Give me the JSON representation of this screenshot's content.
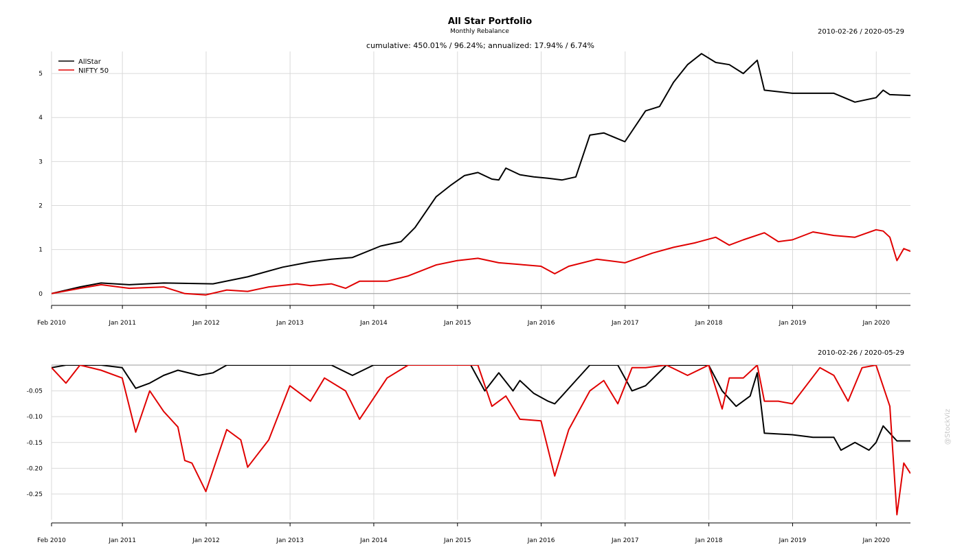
{
  "chart_data": [
    {
      "type": "line",
      "title": "All Star Portfolio",
      "subtitle": "Monthly Rebalance",
      "summary": "cumulative: 450.01% / 96.24%; annualized: 17.94% / 6.74%",
      "date_range_label": "2010-02-26 / 2020-05-29",
      "x_range": [
        "2010-02-26",
        "2020-05-29"
      ],
      "x_ticks": [
        "Feb 2010",
        "Jan 2011",
        "Jan 2012",
        "Jan 2013",
        "Jan 2014",
        "Jan 2015",
        "Jan 2016",
        "Jan 2017",
        "Jan 2018",
        "Jan 2019",
        "Jan 2020"
      ],
      "ylim": [
        -0.3,
        5.5
      ],
      "y_ticks": [
        "0",
        "1",
        "2",
        "3",
        "4",
        "5"
      ],
      "grid": true,
      "legend_position": "top-left",
      "series": [
        {
          "name": "AllStar",
          "color": "#000000",
          "dates": [
            "2010-02-26",
            "2010-06-30",
            "2010-09-30",
            "2011-01-31",
            "2011-06-30",
            "2012-01-31",
            "2012-06-30",
            "2012-11-30",
            "2013-03-31",
            "2013-06-30",
            "2013-09-30",
            "2014-01-31",
            "2014-04-30",
            "2014-06-30",
            "2014-09-30",
            "2014-11-30",
            "2015-01-31",
            "2015-03-31",
            "2015-05-31",
            "2015-06-30",
            "2015-07-31",
            "2015-09-30",
            "2015-11-30",
            "2016-01-31",
            "2016-03-31",
            "2016-05-31",
            "2016-07-31",
            "2016-09-30",
            "2016-12-31",
            "2017-03-31",
            "2017-05-31",
            "2017-07-31",
            "2017-09-30",
            "2017-11-30",
            "2018-01-31",
            "2018-03-31",
            "2018-05-31",
            "2018-07-31",
            "2018-08-31",
            "2018-12-31",
            "2019-06-30",
            "2019-09-30",
            "2019-12-31",
            "2020-01-31",
            "2020-02-29",
            "2020-05-29"
          ],
          "values": [
            0.0,
            0.15,
            0.24,
            0.2,
            0.24,
            0.22,
            0.38,
            0.6,
            0.72,
            0.78,
            0.82,
            1.08,
            1.18,
            1.5,
            2.2,
            2.45,
            2.68,
            2.75,
            2.6,
            2.58,
            2.85,
            2.7,
            2.65,
            2.62,
            2.58,
            2.65,
            3.6,
            3.65,
            3.45,
            4.15,
            4.25,
            4.8,
            5.2,
            5.45,
            5.25,
            5.2,
            5.0,
            5.3,
            4.62,
            4.55,
            4.55,
            4.35,
            4.45,
            4.62,
            4.52,
            4.5
          ]
        },
        {
          "name": "NIFTY 50",
          "color": "#e00000",
          "dates": [
            "2010-02-26",
            "2010-06-30",
            "2010-09-30",
            "2011-01-31",
            "2011-06-30",
            "2011-09-30",
            "2011-12-31",
            "2012-03-31",
            "2012-06-30",
            "2012-09-30",
            "2013-01-31",
            "2013-03-31",
            "2013-06-30",
            "2013-08-31",
            "2013-10-31",
            "2014-02-28",
            "2014-05-31",
            "2014-09-30",
            "2014-12-31",
            "2015-03-31",
            "2015-06-30",
            "2015-09-30",
            "2015-12-31",
            "2016-02-29",
            "2016-04-30",
            "2016-08-31",
            "2016-12-31",
            "2017-04-30",
            "2017-07-31",
            "2017-10-31",
            "2018-01-31",
            "2018-03-31",
            "2018-05-31",
            "2018-08-31",
            "2018-10-31",
            "2018-12-31",
            "2019-03-31",
            "2019-06-30",
            "2019-09-30",
            "2019-12-31",
            "2020-01-31",
            "2020-02-29",
            "2020-03-31",
            "2020-04-30",
            "2020-05-29"
          ],
          "values": [
            0.0,
            0.12,
            0.2,
            0.12,
            0.15,
            0.0,
            -0.03,
            0.08,
            0.05,
            0.15,
            0.22,
            0.18,
            0.22,
            0.12,
            0.28,
            0.28,
            0.4,
            0.65,
            0.75,
            0.8,
            0.7,
            0.66,
            0.62,
            0.45,
            0.62,
            0.78,
            0.7,
            0.92,
            1.05,
            1.15,
            1.28,
            1.1,
            1.22,
            1.38,
            1.18,
            1.22,
            1.4,
            1.32,
            1.28,
            1.45,
            1.42,
            1.28,
            0.75,
            1.02,
            0.96
          ]
        }
      ]
    },
    {
      "type": "line",
      "date_range_label": "2010-02-26 / 2020-05-29",
      "x_range": [
        "2010-02-26",
        "2020-05-29"
      ],
      "x_ticks": [
        "Feb 2010",
        "Jan 2011",
        "Jan 2012",
        "Jan 2013",
        "Jan 2014",
        "Jan 2015",
        "Jan 2016",
        "Jan 2017",
        "Jan 2018",
        "Jan 2019",
        "Jan 2020"
      ],
      "ylim": [
        -0.3,
        0.0
      ],
      "y_ticks": [
        "-0.05",
        "-0.10",
        "-0.15",
        "-0.20",
        "-0.25"
      ],
      "grid": true,
      "series": [
        {
          "name": "AllStar",
          "color": "#000000",
          "dates": [
            "2010-02-26",
            "2010-04-30",
            "2010-06-30",
            "2010-09-30",
            "2010-12-31",
            "2011-02-28",
            "2011-04-30",
            "2011-06-30",
            "2011-08-31",
            "2011-11-30",
            "2012-01-31",
            "2012-03-31",
            "2012-06-30",
            "2012-12-31",
            "2013-06-30",
            "2013-09-30",
            "2013-12-31",
            "2014-06-30",
            "2014-12-31",
            "2015-02-28",
            "2015-04-30",
            "2015-06-30",
            "2015-08-31",
            "2015-09-30",
            "2015-11-30",
            "2016-01-31",
            "2016-02-29",
            "2016-03-31",
            "2016-05-31",
            "2016-07-31",
            "2016-09-30",
            "2016-11-30",
            "2017-01-31",
            "2017-03-31",
            "2017-06-30",
            "2017-09-30",
            "2017-12-31",
            "2018-02-28",
            "2018-04-30",
            "2018-06-30",
            "2018-07-31",
            "2018-08-31",
            "2018-12-31",
            "2019-03-31",
            "2019-06-30",
            "2019-07-31",
            "2019-09-30",
            "2019-11-30",
            "2019-12-31",
            "2020-01-31",
            "2020-03-31",
            "2020-05-29"
          ],
          "values": [
            -0.005,
            0.0,
            0.0,
            0.0,
            -0.005,
            -0.045,
            -0.035,
            -0.02,
            -0.01,
            -0.02,
            -0.015,
            0.0,
            0.0,
            0.0,
            0.0,
            -0.02,
            0.0,
            0.0,
            0.0,
            0.0,
            -0.05,
            -0.015,
            -0.05,
            -0.03,
            -0.055,
            -0.07,
            -0.075,
            -0.06,
            -0.03,
            0.0,
            0.0,
            0.0,
            -0.05,
            -0.04,
            0.0,
            0.0,
            0.0,
            -0.05,
            -0.08,
            -0.06,
            -0.015,
            -0.132,
            -0.135,
            -0.14,
            -0.14,
            -0.165,
            -0.15,
            -0.165,
            -0.15,
            -0.118,
            -0.147,
            -0.147
          ]
        },
        {
          "name": "NIFTY 50",
          "color": "#e00000",
          "dates": [
            "2010-02-26",
            "2010-04-30",
            "2010-06-30",
            "2010-09-30",
            "2010-12-31",
            "2011-02-28",
            "2011-04-30",
            "2011-06-30",
            "2011-08-31",
            "2011-09-30",
            "2011-10-31",
            "2011-12-31",
            "2012-03-31",
            "2012-05-31",
            "2012-06-30",
            "2012-09-30",
            "2012-12-31",
            "2013-03-31",
            "2013-05-31",
            "2013-08-31",
            "2013-10-31",
            "2014-02-28",
            "2014-05-31",
            "2014-12-31",
            "2015-03-31",
            "2015-05-31",
            "2015-07-31",
            "2015-09-30",
            "2015-12-31",
            "2016-02-29",
            "2016-04-30",
            "2016-07-31",
            "2016-09-30",
            "2016-11-30",
            "2017-01-31",
            "2017-03-31",
            "2017-06-30",
            "2017-09-30",
            "2017-12-31",
            "2018-02-28",
            "2018-03-31",
            "2018-05-31",
            "2018-07-31",
            "2018-08-31",
            "2018-10-31",
            "2018-12-31",
            "2019-04-30",
            "2019-06-30",
            "2019-08-31",
            "2019-10-31",
            "2019-12-31",
            "2020-02-29",
            "2020-03-31",
            "2020-04-30",
            "2020-05-29"
          ],
          "values": [
            -0.005,
            -0.035,
            0.0,
            -0.01,
            -0.025,
            -0.13,
            -0.05,
            -0.09,
            -0.12,
            -0.185,
            -0.19,
            -0.245,
            -0.125,
            -0.145,
            -0.198,
            -0.145,
            -0.04,
            -0.07,
            -0.025,
            -0.05,
            -0.105,
            -0.025,
            0.0,
            0.0,
            0.0,
            -0.08,
            -0.06,
            -0.105,
            -0.108,
            -0.215,
            -0.125,
            -0.05,
            -0.03,
            -0.075,
            -0.005,
            -0.005,
            0.0,
            -0.02,
            0.0,
            -0.085,
            -0.025,
            -0.025,
            0.0,
            -0.07,
            -0.07,
            -0.075,
            -0.005,
            -0.02,
            -0.07,
            -0.005,
            0.0,
            -0.08,
            -0.29,
            -0.19,
            -0.21
          ]
        }
      ]
    }
  ],
  "watermark": "@StockViz"
}
